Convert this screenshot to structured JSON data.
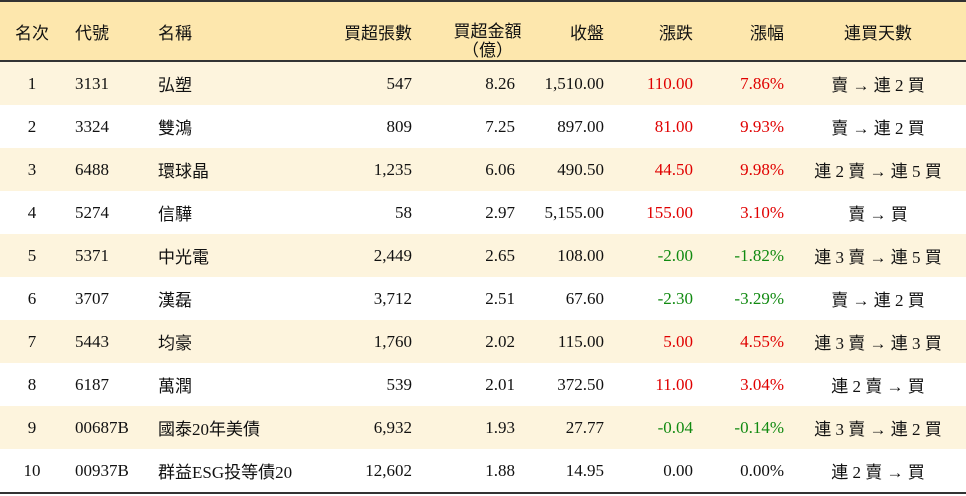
{
  "table": {
    "header": [
      "名次",
      "代號",
      "名稱",
      "買超張數",
      [
        "買超金額",
        "（億）"
      ],
      "收盤",
      "漲跌",
      "漲幅",
      "連買天數"
    ],
    "rows": [
      [
        "1",
        "3131",
        "弘塑",
        "547",
        "8.26",
        "1,510.00",
        "110.00",
        "7.86%",
        "賣 → 連 2 買"
      ],
      [
        "2",
        "3324",
        "雙鴻",
        "809",
        "7.25",
        "897.00",
        "81.00",
        "9.93%",
        "賣 → 連 2 買"
      ],
      [
        "3",
        "6488",
        "環球晶",
        "1,235",
        "6.06",
        "490.50",
        "44.50",
        "9.98%",
        "連 2 賣 → 連 5 買"
      ],
      [
        "4",
        "5274",
        "信驊",
        "58",
        "2.97",
        "5,155.00",
        "155.00",
        "3.10%",
        "賣 → 買"
      ],
      [
        "5",
        "5371",
        "中光電",
        "2,449",
        "2.65",
        "108.00",
        "-2.00",
        "-1.82%",
        "連 3 賣 → 連 5 買"
      ],
      [
        "6",
        "3707",
        "漢磊",
        "3,712",
        "2.51",
        "67.60",
        "-2.30",
        "-3.29%",
        "賣 → 連 2 買"
      ],
      [
        "7",
        "5443",
        "均豪",
        "1,760",
        "2.02",
        "115.00",
        "5.00",
        "4.55%",
        "連 3 賣 → 連 3 買"
      ],
      [
        "8",
        "6187",
        "萬潤",
        "539",
        "2.01",
        "372.50",
        "11.00",
        "3.04%",
        "連 2 賣 → 買"
      ],
      [
        "9",
        "00687B",
        "國泰20年美債",
        "6,932",
        "1.93",
        "27.77",
        "-0.04",
        "-0.14%",
        "連 3 賣 → 連 2 買"
      ],
      [
        "10",
        "00937B",
        "群益ESG投等債20",
        "12,602",
        "1.88",
        "14.95",
        "0.00",
        "0.00%",
        "連 2 賣 → 買"
      ]
    ]
  }
}
